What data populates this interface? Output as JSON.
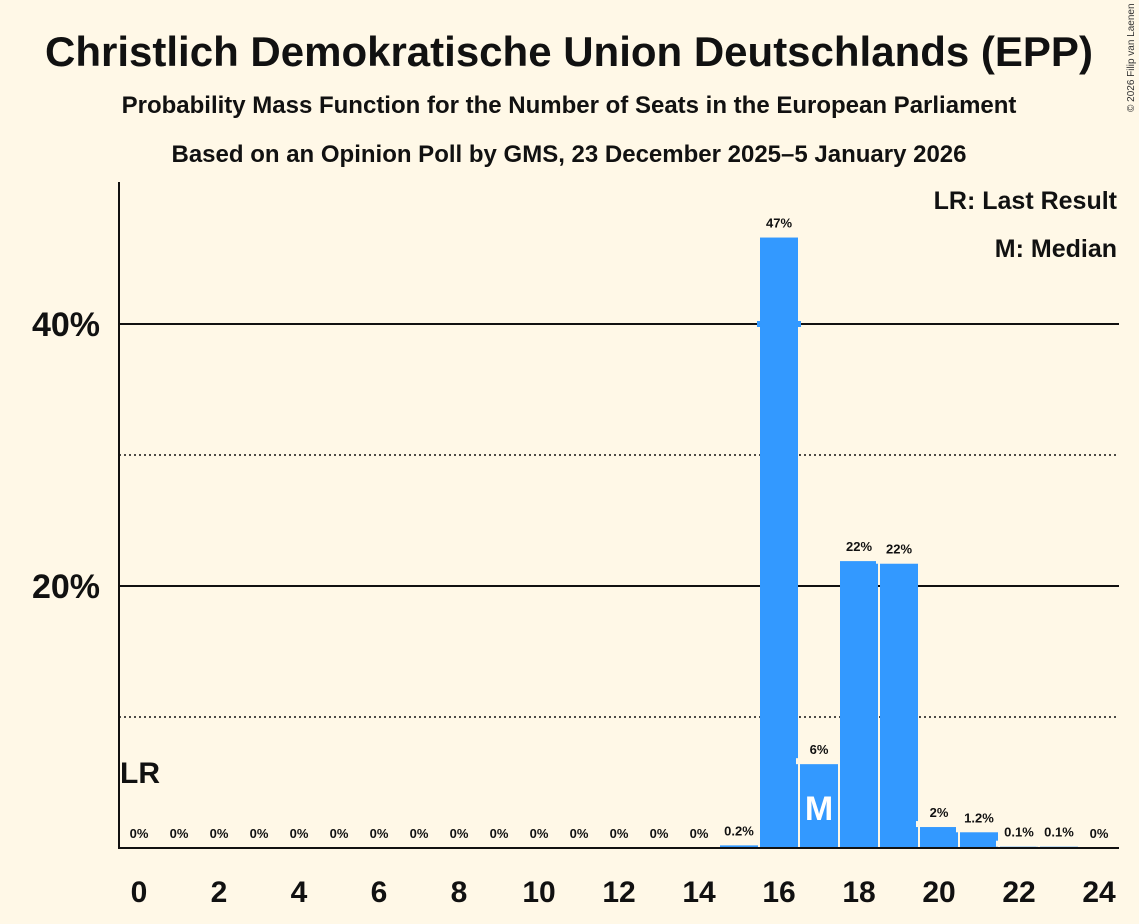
{
  "chart_data": {
    "type": "bar",
    "title": "Christlich Demokratische Union Deutschlands (EPP)",
    "subtitle": "Probability Mass Function for the Number of Seats in the European Parliament",
    "subtitle2": "Based on an Opinion Poll by GMS, 23 December 2025–5 January 2026",
    "copyright": "© 2026 Filip van Laenen",
    "x": [
      0,
      1,
      2,
      3,
      4,
      5,
      6,
      7,
      8,
      9,
      10,
      11,
      12,
      13,
      14,
      15,
      16,
      17,
      18,
      19,
      20,
      21,
      22,
      23,
      24
    ],
    "values": [
      0,
      0,
      0,
      0,
      0,
      0,
      0,
      0,
      0,
      0,
      0,
      0,
      0,
      0,
      0,
      0.2,
      46.6,
      6.4,
      21.9,
      21.7,
      1.6,
      1.2,
      0.1,
      0.1,
      0
    ],
    "value_labels": [
      "0%",
      "0%",
      "0%",
      "0%",
      "0%",
      "0%",
      "0%",
      "0%",
      "0%",
      "0%",
      "0%",
      "0%",
      "0%",
      "0%",
      "0%",
      "0.2%",
      "47%",
      "6%",
      "22%",
      "22%",
      "2%",
      "1.2%",
      "0.1%",
      "0.1%",
      "0%"
    ],
    "x_tick_labels": [
      "0",
      "2",
      "4",
      "6",
      "8",
      "10",
      "12",
      "14",
      "16",
      "18",
      "20",
      "22",
      "24"
    ],
    "x_tick_values": [
      0,
      2,
      4,
      6,
      8,
      10,
      12,
      14,
      16,
      18,
      20,
      22,
      24
    ],
    "y_tick_labels": [
      "20%",
      "40%"
    ],
    "y_tick_values": [
      20,
      40
    ],
    "y_minor_gridlines": [
      10,
      30
    ],
    "ylim": [
      0,
      50
    ],
    "last_result_seat": 0,
    "last_result_label": "LR",
    "median_seat": 17,
    "median_label": "M",
    "legend": {
      "last_result": "LR: Last Result",
      "median": "M: Median"
    },
    "colors": {
      "bar": "#3399FF",
      "background": "#FFF8E7",
      "text": "#111111"
    }
  }
}
